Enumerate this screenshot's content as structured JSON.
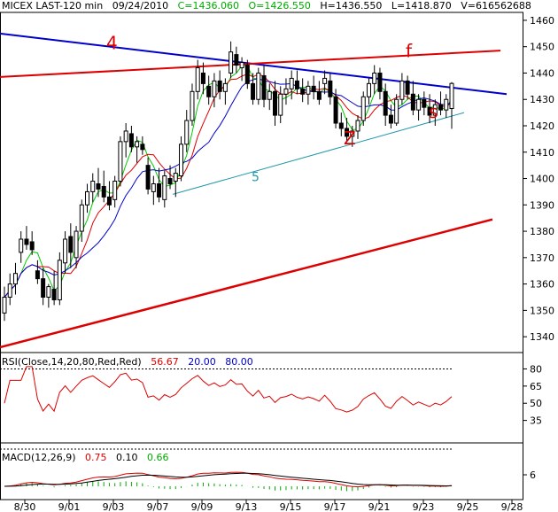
{
  "header": {
    "title": "MICEX LAST-120 min",
    "date": "09/24/2010",
    "close": "C=1436.060",
    "open": "O=1426.550",
    "high": "H=1436.550",
    "low": "L=1418.870",
    "volume": "V=616562688"
  },
  "rsi_panel": {
    "title": "RSI(Close,14,20,80,Red,Red)",
    "value": "56.67",
    "low_level": "20.00",
    "high_level": "80.00",
    "axis_ticks": [
      "80",
      "65",
      "50",
      "35"
    ]
  },
  "macd_panel": {
    "title": "MACD(12,26,9)",
    "macd_value": "0.75",
    "signal_value": "0.10",
    "hist_value": "0.66",
    "axis_ticks": [
      "6"
    ]
  },
  "colors": {
    "up_candle": "#ffffff",
    "down_candle": "#000000",
    "ma_fast": "#00cc00",
    "ma_mid": "#e00000",
    "ma_slow": "#0000cc",
    "trend_blue": "#0000cc",
    "trend_red": "#dd0000",
    "trend_teal": "#2299aa",
    "header_green": "#00aa00",
    "rsi_line": "#dd0000",
    "rsi_level": "#0000cc"
  },
  "chart_data": {
    "type": "candlestick",
    "title": "MICEX LAST-120 min",
    "x_ticks": [
      "8/30",
      "9/01",
      "9/03",
      "9/07",
      "9/09",
      "9/13",
      "9/15",
      "9/17",
      "9/21",
      "9/23",
      "9/25",
      "9/28"
    ],
    "y_ticks": [
      1340,
      1350,
      1360,
      1370,
      1380,
      1390,
      1400,
      1410,
      1420,
      1430,
      1440,
      1450,
      1460
    ],
    "ylim": [
      1334,
      1463
    ],
    "annotations": [
      {
        "label": "4",
        "color": "red"
      },
      {
        "label": "f",
        "color": "red"
      },
      {
        "label": "Z",
        "color": "red"
      },
      {
        "label": "s",
        "color": "red"
      },
      {
        "label": "5",
        "color": "teal"
      }
    ],
    "candles": [
      {
        "o": 1349,
        "h": 1359,
        "l": 1346,
        "c": 1355
      },
      {
        "o": 1355,
        "h": 1364,
        "l": 1352,
        "c": 1360
      },
      {
        "o": 1360,
        "h": 1368,
        "l": 1356,
        "c": 1364
      },
      {
        "o": 1372,
        "h": 1380,
        "l": 1368,
        "c": 1377
      },
      {
        "o": 1377,
        "h": 1382,
        "l": 1373,
        "c": 1375
      },
      {
        "o": 1376,
        "h": 1380,
        "l": 1371,
        "c": 1373
      },
      {
        "o": 1365,
        "h": 1369,
        "l": 1360,
        "c": 1362
      },
      {
        "o": 1362,
        "h": 1366,
        "l": 1352,
        "c": 1355
      },
      {
        "o": 1355,
        "h": 1360,
        "l": 1351,
        "c": 1359
      },
      {
        "o": 1358,
        "h": 1365,
        "l": 1352,
        "c": 1354
      },
      {
        "o": 1354,
        "h": 1372,
        "l": 1352,
        "c": 1369
      },
      {
        "o": 1368,
        "h": 1380,
        "l": 1364,
        "c": 1377
      },
      {
        "o": 1378,
        "h": 1383,
        "l": 1366,
        "c": 1372
      },
      {
        "o": 1370,
        "h": 1382,
        "l": 1366,
        "c": 1380
      },
      {
        "o": 1380,
        "h": 1392,
        "l": 1376,
        "c": 1390
      },
      {
        "o": 1390,
        "h": 1398,
        "l": 1387,
        "c": 1395
      },
      {
        "o": 1395,
        "h": 1402,
        "l": 1391,
        "c": 1399
      },
      {
        "o": 1398,
        "h": 1404,
        "l": 1393,
        "c": 1396
      },
      {
        "o": 1397,
        "h": 1403,
        "l": 1391,
        "c": 1393
      },
      {
        "o": 1393,
        "h": 1399,
        "l": 1388,
        "c": 1390
      },
      {
        "o": 1392,
        "h": 1401,
        "l": 1389,
        "c": 1399
      },
      {
        "o": 1399,
        "h": 1416,
        "l": 1397,
        "c": 1414
      },
      {
        "o": 1414,
        "h": 1421,
        "l": 1408,
        "c": 1418
      },
      {
        "o": 1417,
        "h": 1420,
        "l": 1410,
        "c": 1412
      },
      {
        "o": 1412,
        "h": 1416,
        "l": 1406,
        "c": 1414
      },
      {
        "o": 1413,
        "h": 1416,
        "l": 1409,
        "c": 1411
      },
      {
        "o": 1405,
        "h": 1408,
        "l": 1394,
        "c": 1396
      },
      {
        "o": 1395,
        "h": 1401,
        "l": 1390,
        "c": 1398
      },
      {
        "o": 1398,
        "h": 1404,
        "l": 1391,
        "c": 1393
      },
      {
        "o": 1392,
        "h": 1403,
        "l": 1389,
        "c": 1401
      },
      {
        "o": 1400,
        "h": 1405,
        "l": 1396,
        "c": 1398
      },
      {
        "o": 1399,
        "h": 1404,
        "l": 1393,
        "c": 1402
      },
      {
        "o": 1401,
        "h": 1416,
        "l": 1399,
        "c": 1413
      },
      {
        "o": 1413,
        "h": 1426,
        "l": 1410,
        "c": 1422
      },
      {
        "o": 1422,
        "h": 1436,
        "l": 1420,
        "c": 1433
      },
      {
        "o": 1433,
        "h": 1445,
        "l": 1430,
        "c": 1442
      },
      {
        "o": 1440,
        "h": 1444,
        "l": 1432,
        "c": 1436
      },
      {
        "o": 1435,
        "h": 1439,
        "l": 1428,
        "c": 1431
      },
      {
        "o": 1431,
        "h": 1440,
        "l": 1427,
        "c": 1437
      },
      {
        "o": 1437,
        "h": 1441,
        "l": 1430,
        "c": 1433
      },
      {
        "o": 1433,
        "h": 1438,
        "l": 1428,
        "c": 1436
      },
      {
        "o": 1440,
        "h": 1452,
        "l": 1438,
        "c": 1448
      },
      {
        "o": 1447,
        "h": 1450,
        "l": 1440,
        "c": 1443
      },
      {
        "o": 1442,
        "h": 1446,
        "l": 1437,
        "c": 1444
      },
      {
        "o": 1443,
        "h": 1445,
        "l": 1434,
        "c": 1436
      },
      {
        "o": 1436,
        "h": 1440,
        "l": 1428,
        "c": 1430
      },
      {
        "o": 1430,
        "h": 1442,
        "l": 1428,
        "c": 1440
      },
      {
        "o": 1439,
        "h": 1443,
        "l": 1427,
        "c": 1430
      },
      {
        "o": 1430,
        "h": 1436,
        "l": 1426,
        "c": 1433
      },
      {
        "o": 1433,
        "h": 1437,
        "l": 1420,
        "c": 1424
      },
      {
        "o": 1424,
        "h": 1435,
        "l": 1421,
        "c": 1432
      },
      {
        "o": 1432,
        "h": 1438,
        "l": 1428,
        "c": 1434
      },
      {
        "o": 1434,
        "h": 1441,
        "l": 1430,
        "c": 1438
      },
      {
        "o": 1437,
        "h": 1441,
        "l": 1432,
        "c": 1434
      },
      {
        "o": 1434,
        "h": 1438,
        "l": 1429,
        "c": 1432
      },
      {
        "o": 1432,
        "h": 1437,
        "l": 1428,
        "c": 1435
      },
      {
        "o": 1435,
        "h": 1439,
        "l": 1430,
        "c": 1433
      },
      {
        "o": 1433,
        "h": 1437,
        "l": 1428,
        "c": 1430
      },
      {
        "o": 1436,
        "h": 1441,
        "l": 1432,
        "c": 1438
      },
      {
        "o": 1437,
        "h": 1440,
        "l": 1428,
        "c": 1431
      },
      {
        "o": 1431,
        "h": 1434,
        "l": 1419,
        "c": 1421
      },
      {
        "o": 1421,
        "h": 1425,
        "l": 1416,
        "c": 1419
      },
      {
        "o": 1419,
        "h": 1423,
        "l": 1414,
        "c": 1416
      },
      {
        "o": 1416,
        "h": 1420,
        "l": 1412,
        "c": 1418
      },
      {
        "o": 1418,
        "h": 1424,
        "l": 1415,
        "c": 1422
      },
      {
        "o": 1422,
        "h": 1433,
        "l": 1420,
        "c": 1431
      },
      {
        "o": 1431,
        "h": 1438,
        "l": 1428,
        "c": 1436
      },
      {
        "o": 1436,
        "h": 1443,
        "l": 1432,
        "c": 1440
      },
      {
        "o": 1440,
        "h": 1442,
        "l": 1430,
        "c": 1433
      },
      {
        "o": 1433,
        "h": 1436,
        "l": 1420,
        "c": 1424
      },
      {
        "o": 1424,
        "h": 1428,
        "l": 1419,
        "c": 1421
      },
      {
        "o": 1421,
        "h": 1432,
        "l": 1420,
        "c": 1430
      },
      {
        "o": 1430,
        "h": 1440,
        "l": 1428,
        "c": 1437
      },
      {
        "o": 1437,
        "h": 1439,
        "l": 1430,
        "c": 1432
      },
      {
        "o": 1432,
        "h": 1437,
        "l": 1424,
        "c": 1426
      },
      {
        "o": 1426,
        "h": 1432,
        "l": 1422,
        "c": 1430
      },
      {
        "o": 1430,
        "h": 1433,
        "l": 1424,
        "c": 1427
      },
      {
        "o": 1427,
        "h": 1432,
        "l": 1421,
        "c": 1424
      },
      {
        "o": 1424,
        "h": 1430,
        "l": 1420,
        "c": 1428
      },
      {
        "o": 1428,
        "h": 1433,
        "l": 1424,
        "c": 1426
      },
      {
        "o": 1426,
        "h": 1432,
        "l": 1423,
        "c": 1430
      },
      {
        "o": 1426.55,
        "h": 1436.55,
        "l": 1418.87,
        "c": 1436.06
      }
    ]
  }
}
